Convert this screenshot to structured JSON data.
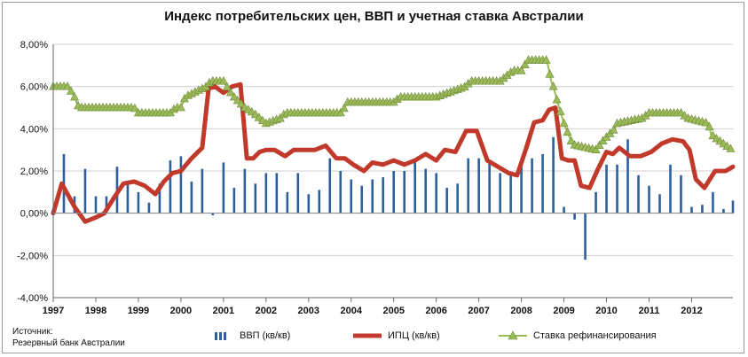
{
  "chart_data": {
    "type": "line",
    "title": "Индекс потребительских цен, ВВП и учетная ставка Австралии",
    "ylim": [
      -4.0,
      8.0
    ],
    "yticks": [
      "8,00%",
      "6,00%",
      "4,00%",
      "2,00%",
      "0,00%",
      "-2,00%",
      "-4,00%"
    ],
    "ytick_values": [
      8,
      6,
      4,
      2,
      0,
      -2,
      -4
    ],
    "xticks": [
      "1997",
      "1998",
      "1999",
      "2000",
      "2001",
      "2002",
      "2003",
      "2004",
      "2005",
      "2006",
      "2007",
      "2008",
      "2009",
      "2010",
      "2011",
      "2012"
    ],
    "xrange": [
      1997.0,
      2012.97
    ],
    "grid": true,
    "legend_position": "bottom",
    "series": [
      {
        "name": "ВВП (кв/кв)",
        "type": "bar",
        "color": "#2d5f9e",
        "x": [
          1997.25,
          1997.5,
          1997.75,
          1998.0,
          1998.25,
          1998.5,
          1998.75,
          1999.0,
          1999.25,
          1999.5,
          1999.75,
          2000.0,
          2000.25,
          2000.5,
          2000.75,
          2001.0,
          2001.25,
          2001.5,
          2001.75,
          2002.0,
          2002.25,
          2002.5,
          2002.75,
          2003.0,
          2003.25,
          2003.5,
          2003.75,
          2004.0,
          2004.25,
          2004.5,
          2004.75,
          2005.0,
          2005.25,
          2005.5,
          2005.75,
          2006.0,
          2006.25,
          2006.5,
          2006.75,
          2007.0,
          2007.25,
          2007.5,
          2007.75,
          2008.0,
          2008.25,
          2008.5,
          2008.75,
          2009.0,
          2009.25,
          2009.5,
          2009.75,
          2010.0,
          2010.25,
          2010.5,
          2010.75,
          2011.0,
          2011.25,
          2011.5,
          2011.75,
          2012.0,
          2012.25,
          2012.5,
          2012.75,
          2012.97
        ],
        "values": [
          2.8,
          0.8,
          2.1,
          0.8,
          0.8,
          2.2,
          1.4,
          1.0,
          0.5,
          1.4,
          2.5,
          2.7,
          1.5,
          2.1,
          -0.1,
          2.4,
          1.2,
          2.1,
          1.4,
          1.9,
          1.9,
          1.0,
          1.9,
          0.9,
          1.1,
          2.6,
          2.0,
          1.6,
          1.3,
          1.6,
          1.7,
          2.0,
          2.0,
          2.5,
          2.1,
          1.9,
          1.2,
          1.4,
          2.6,
          2.6,
          2.4,
          1.9,
          1.9,
          2.5,
          2.6,
          2.8,
          3.6,
          0.3,
          -0.3,
          -2.2,
          1.0,
          2.3,
          2.3,
          3.5,
          1.8,
          1.3,
          0.9,
          2.3,
          1.8,
          0.3,
          0.4,
          1.0,
          0.2,
          0.6
        ]
      },
      {
        "name": "ИПЦ (кв/кв)",
        "type": "line",
        "color": "#c0392b",
        "x": [
          1997.0,
          1997.2,
          1997.5,
          1997.75,
          1998.0,
          1998.2,
          1998.45,
          1998.65,
          1998.9,
          1999.15,
          1999.4,
          1999.6,
          1999.8,
          2000.0,
          2000.25,
          2000.5,
          2000.65,
          2000.8,
          2001.0,
          2001.2,
          2001.4,
          2001.55,
          2001.7,
          2001.85,
          2002.0,
          2002.2,
          2002.45,
          2002.65,
          2002.9,
          2003.15,
          2003.4,
          2003.65,
          2003.85,
          2004.05,
          2004.3,
          2004.5,
          2004.75,
          2005.0,
          2005.25,
          2005.5,
          2005.75,
          2006.0,
          2006.2,
          2006.45,
          2006.7,
          2006.95,
          2007.2,
          2007.45,
          2007.7,
          2007.9,
          2008.1,
          2008.3,
          2008.5,
          2008.65,
          2008.8,
          2008.95,
          2009.1,
          2009.25,
          2009.4,
          2009.6,
          2009.8,
          2010.0,
          2010.15,
          2010.3,
          2010.55,
          2010.8,
          2011.05,
          2011.3,
          2011.55,
          2011.8,
          2011.95,
          2012.1,
          2012.3,
          2012.55,
          2012.8,
          2012.97
        ],
        "values": [
          0.0,
          1.4,
          0.3,
          -0.4,
          -0.2,
          0.0,
          0.8,
          1.4,
          1.5,
          1.3,
          0.9,
          1.5,
          1.9,
          2.0,
          2.6,
          3.1,
          5.9,
          6.0,
          5.7,
          6.0,
          6.1,
          2.6,
          2.6,
          2.9,
          3.0,
          3.0,
          2.7,
          3.0,
          3.0,
          3.0,
          3.2,
          2.6,
          2.6,
          2.3,
          2.0,
          2.4,
          2.3,
          2.5,
          2.3,
          2.5,
          2.8,
          2.5,
          3.0,
          2.9,
          3.9,
          3.9,
          2.5,
          2.2,
          1.9,
          1.8,
          3.0,
          4.3,
          4.4,
          4.9,
          5.0,
          2.6,
          2.5,
          2.5,
          1.3,
          1.2,
          2.1,
          2.9,
          2.8,
          3.1,
          2.7,
          2.7,
          2.9,
          3.3,
          3.5,
          3.4,
          3.0,
          1.6,
          1.2,
          2.0,
          2.0,
          2.2
        ]
      },
      {
        "name": "Ставка рефинансирования",
        "type": "line",
        "marker": "triangle",
        "color": "#9bbb59",
        "x": [
          1997.0,
          1997.35,
          1997.5,
          1997.6,
          1998.0,
          1998.9,
          1999.0,
          1999.8,
          1999.85,
          2000.0,
          2000.1,
          2000.35,
          2000.6,
          2000.7,
          2001.0,
          2001.15,
          2001.25,
          2001.5,
          2001.7,
          2001.85,
          2002.0,
          2002.35,
          2002.45,
          2002.9,
          2003.75,
          2003.85,
          2003.9,
          2005.0,
          2005.15,
          2006.0,
          2006.35,
          2006.7,
          2006.8,
          2007.5,
          2007.65,
          2007.8,
          2008.0,
          2008.15,
          2008.6,
          2008.7,
          2008.75,
          2008.85,
          2009.0,
          2009.2,
          2009.75,
          2009.85,
          2009.95,
          2010.2,
          2010.25,
          2010.85,
          2011.0,
          2011.75,
          2011.9,
          2012.4,
          2012.45,
          2012.6,
          2012.95
        ],
        "values": [
          6.0,
          6.0,
          5.5,
          5.0,
          5.0,
          5.0,
          4.75,
          4.75,
          5.0,
          5.0,
          5.5,
          5.75,
          6.0,
          6.25,
          6.25,
          5.75,
          5.5,
          5.0,
          4.75,
          4.5,
          4.25,
          4.5,
          4.75,
          4.75,
          4.75,
          5.0,
          5.25,
          5.25,
          5.5,
          5.5,
          5.75,
          6.0,
          6.25,
          6.25,
          6.5,
          6.75,
          6.75,
          7.25,
          7.25,
          6.25,
          6.0,
          5.25,
          4.25,
          3.25,
          3.0,
          3.25,
          3.5,
          4.0,
          4.25,
          4.5,
          4.75,
          4.75,
          4.5,
          4.25,
          3.75,
          3.5,
          3.0
        ]
      }
    ]
  },
  "source": {
    "line1": "Источник:",
    "line2": "Резервный банк Австралии"
  },
  "legend": {
    "gdp": "ВВП (кв/кв)",
    "cpi": "ИПЦ (кв/кв)",
    "rate": "Ставка рефинансирования"
  }
}
